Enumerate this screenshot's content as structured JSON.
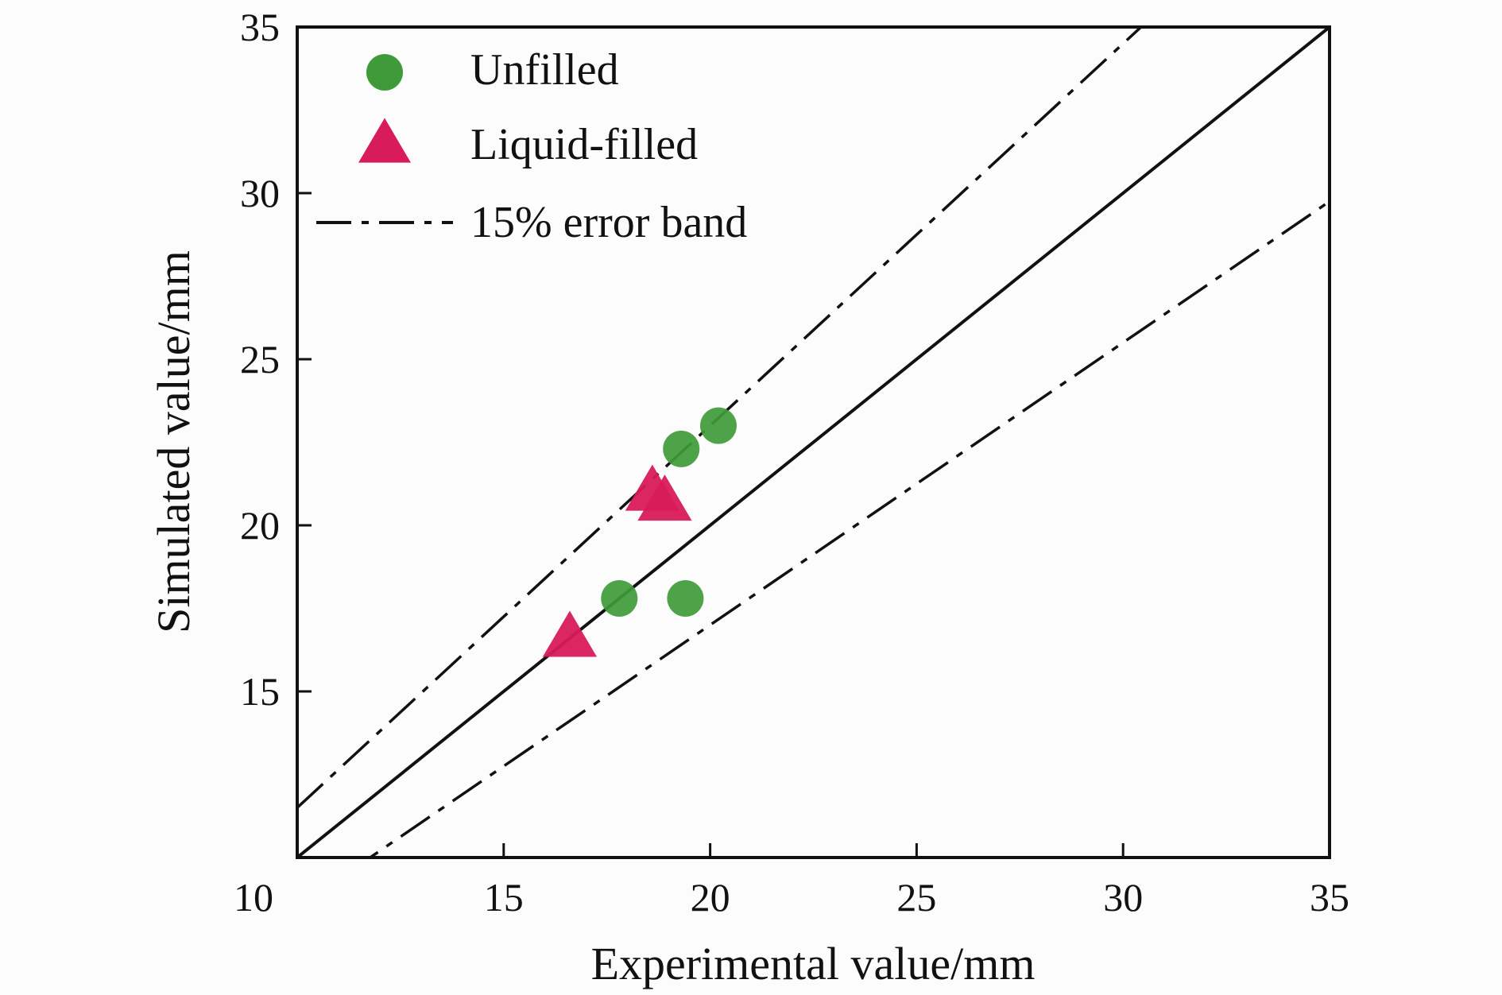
{
  "chart_data": {
    "type": "scatter",
    "title": "",
    "xlabel": "Experimental value/mm",
    "ylabel": "Simulated value/mm",
    "xlim": [
      10,
      35
    ],
    "ylim": [
      10,
      35
    ],
    "xticks": [
      "10",
      "15",
      "20",
      "25",
      "30",
      "35"
    ],
    "yticks": [
      "15",
      "20",
      "25",
      "30",
      "35"
    ],
    "grid": false,
    "legend_position": "top-left",
    "series": [
      {
        "name": "Unfilled",
        "marker": "circle",
        "color": "#3f9b3a",
        "points": [
          {
            "x": 17.8,
            "y": 17.8
          },
          {
            "x": 19.4,
            "y": 17.8
          },
          {
            "x": 19.3,
            "y": 22.3
          },
          {
            "x": 20.2,
            "y": 23.0
          }
        ]
      },
      {
        "name": "Liquid-filled",
        "marker": "triangle",
        "color": "#d81b5a",
        "points": [
          {
            "x": 16.6,
            "y": 16.6
          },
          {
            "x": 18.6,
            "y": 21.0
          },
          {
            "x": 18.9,
            "y": 20.7
          }
        ]
      }
    ],
    "reference_lines": [
      {
        "name": "",
        "style": "solid",
        "slope": 1.0
      },
      {
        "name": "15% error band",
        "style": "dash-dot",
        "slope": 1.15
      },
      {
        "name": "",
        "style": "dash-dot",
        "slope": 0.85
      }
    ],
    "colors": {
      "axis": "#111111",
      "background": "#fcfcfc"
    }
  }
}
